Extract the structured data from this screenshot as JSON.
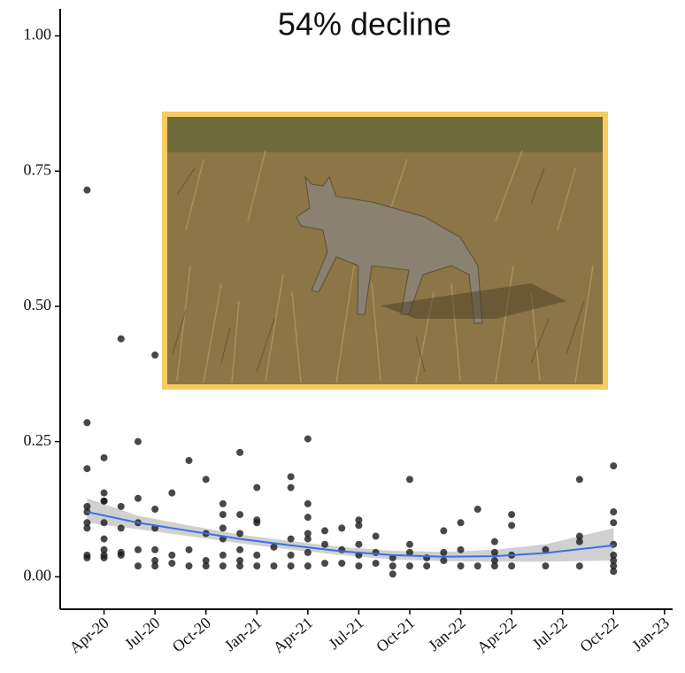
{
  "chart_data": {
    "type": "scatter",
    "title": "54% decline",
    "x": [
      "2020-03",
      "2020-03",
      "2020-03",
      "2020-03",
      "2020-03",
      "2020-03",
      "2020-03",
      "2020-03",
      "2020-03",
      "2020-04",
      "2020-04",
      "2020-04",
      "2020-04",
      "2020-04",
      "2020-04",
      "2020-04",
      "2020-04",
      "2020-04",
      "2020-05",
      "2020-05",
      "2020-05",
      "2020-05",
      "2020-05",
      "2020-06",
      "2020-06",
      "2020-06",
      "2020-06",
      "2020-06",
      "2020-07",
      "2020-07",
      "2020-07",
      "2020-07",
      "2020-07",
      "2020-07",
      "2020-08",
      "2020-08",
      "2020-08",
      "2020-09",
      "2020-09",
      "2020-09",
      "2020-10",
      "2020-10",
      "2020-10",
      "2020-10",
      "2020-11",
      "2020-11",
      "2020-11",
      "2020-11",
      "2020-11",
      "2020-11",
      "2020-12",
      "2020-12",
      "2020-12",
      "2020-12",
      "2020-12",
      "2020-12",
      "2021-01",
      "2021-01",
      "2021-01",
      "2021-01",
      "2021-01",
      "2021-01",
      "2021-02",
      "2021-02",
      "2021-03",
      "2021-03",
      "2021-03",
      "2021-03",
      "2021-03",
      "2021-04",
      "2021-04",
      "2021-04",
      "2021-04",
      "2021-04",
      "2021-04",
      "2021-04",
      "2021-05",
      "2021-05",
      "2021-05",
      "2021-06",
      "2021-06",
      "2021-06",
      "2021-07",
      "2021-07",
      "2021-07",
      "2021-07",
      "2021-07",
      "2021-08",
      "2021-08",
      "2021-08",
      "2021-09",
      "2021-09",
      "2021-09",
      "2021-10",
      "2021-10",
      "2021-10",
      "2021-10",
      "2021-11",
      "2021-11",
      "2021-12",
      "2021-12",
      "2021-12",
      "2022-01",
      "2022-01",
      "2022-01",
      "2022-02",
      "2022-02",
      "2022-03",
      "2022-03",
      "2022-03",
      "2022-03",
      "2022-04",
      "2022-04",
      "2022-04",
      "2022-04",
      "2022-06",
      "2022-06",
      "2022-08",
      "2022-08",
      "2022-08",
      "2022-08",
      "2022-10",
      "2022-10",
      "2022-10",
      "2022-10",
      "2022-10",
      "2022-10",
      "2022-10",
      "2022-10"
    ],
    "values": [
      0.715,
      0.285,
      0.2,
      0.13,
      0.12,
      0.1,
      0.09,
      0.04,
      0.035,
      0.22,
      0.155,
      0.14,
      0.14,
      0.1,
      0.07,
      0.05,
      0.04,
      0.035,
      0.44,
      0.13,
      0.09,
      0.045,
      0.04,
      0.25,
      0.145,
      0.1,
      0.05,
      0.02,
      0.41,
      0.125,
      0.09,
      0.05,
      0.03,
      0.02,
      0.155,
      0.04,
      0.025,
      0.215,
      0.05,
      0.02,
      0.18,
      0.08,
      0.03,
      0.02,
      0.135,
      0.115,
      0.09,
      0.07,
      0.04,
      0.02,
      0.23,
      0.115,
      0.08,
      0.05,
      0.03,
      0.02,
      0.355,
      0.165,
      0.105,
      0.1,
      0.04,
      0.02,
      0.055,
      0.02,
      0.185,
      0.165,
      0.07,
      0.04,
      0.02,
      0.255,
      0.135,
      0.11,
      0.08,
      0.07,
      0.045,
      0.02,
      0.085,
      0.06,
      0.025,
      0.09,
      0.05,
      0.025,
      0.105,
      0.095,
      0.06,
      0.04,
      0.02,
      0.075,
      0.045,
      0.025,
      0.035,
      0.02,
      0.005,
      0.18,
      0.06,
      0.045,
      0.02,
      0.035,
      0.02,
      0.085,
      0.045,
      0.03,
      0.1,
      0.05,
      0.02,
      0.125,
      0.02,
      0.065,
      0.045,
      0.03,
      0.02,
      0.115,
      0.095,
      0.04,
      0.02,
      0.05,
      0.02,
      0.18,
      0.075,
      0.065,
      0.02,
      0.205,
      0.12,
      0.1,
      0.06,
      0.04,
      0.03,
      0.02,
      0.01
    ],
    "color": "#1a1a1a",
    "trend": {
      "color": "#3b6fe8",
      "band_color": "#c8c8c8",
      "x": [
        "2020-03",
        "2020-06",
        "2020-09",
        "2020-12",
        "2021-03",
        "2021-06",
        "2021-09",
        "2021-12",
        "2022-03",
        "2022-06",
        "2022-10"
      ],
      "values": [
        0.12,
        0.1,
        0.085,
        0.07,
        0.058,
        0.047,
        0.04,
        0.037,
        0.038,
        0.044,
        0.058
      ],
      "lower": [
        0.1,
        0.088,
        0.075,
        0.062,
        0.05,
        0.04,
        0.032,
        0.029,
        0.028,
        0.028,
        0.03
      ],
      "upper": [
        0.145,
        0.113,
        0.095,
        0.078,
        0.066,
        0.055,
        0.048,
        0.046,
        0.05,
        0.06,
        0.09
      ]
    },
    "xlim": [
      "2020-01",
      "2023-02"
    ],
    "xticks": [
      {
        "value": "2020-04",
        "label": "Apr-20"
      },
      {
        "value": "2020-07",
        "label": "Jul-20"
      },
      {
        "value": "2020-10",
        "label": "Oct-20"
      },
      {
        "value": "2021-01",
        "label": "Jan-21"
      },
      {
        "value": "2021-04",
        "label": "Apr-21"
      },
      {
        "value": "2021-07",
        "label": "Jul-21"
      },
      {
        "value": "2021-10",
        "label": "Oct-21"
      },
      {
        "value": "2022-01",
        "label": "Jan-22"
      },
      {
        "value": "2022-04",
        "label": "Apr-22"
      },
      {
        "value": "2022-07",
        "label": "Jul-22"
      },
      {
        "value": "2022-10",
        "label": "Oct-22"
      },
      {
        "value": "2023-01",
        "label": "Jan-23"
      }
    ],
    "ylim": [
      -0.06,
      1.05
    ],
    "yticks": [
      {
        "value": 0,
        "label": "0.00"
      },
      {
        "value": 0.25,
        "label": "0.25"
      },
      {
        "value": 0.5,
        "label": "0.50"
      },
      {
        "value": 0.75,
        "label": "0.75"
      },
      {
        "value": 1,
        "label": "1.00"
      }
    ],
    "grid": false
  }
}
